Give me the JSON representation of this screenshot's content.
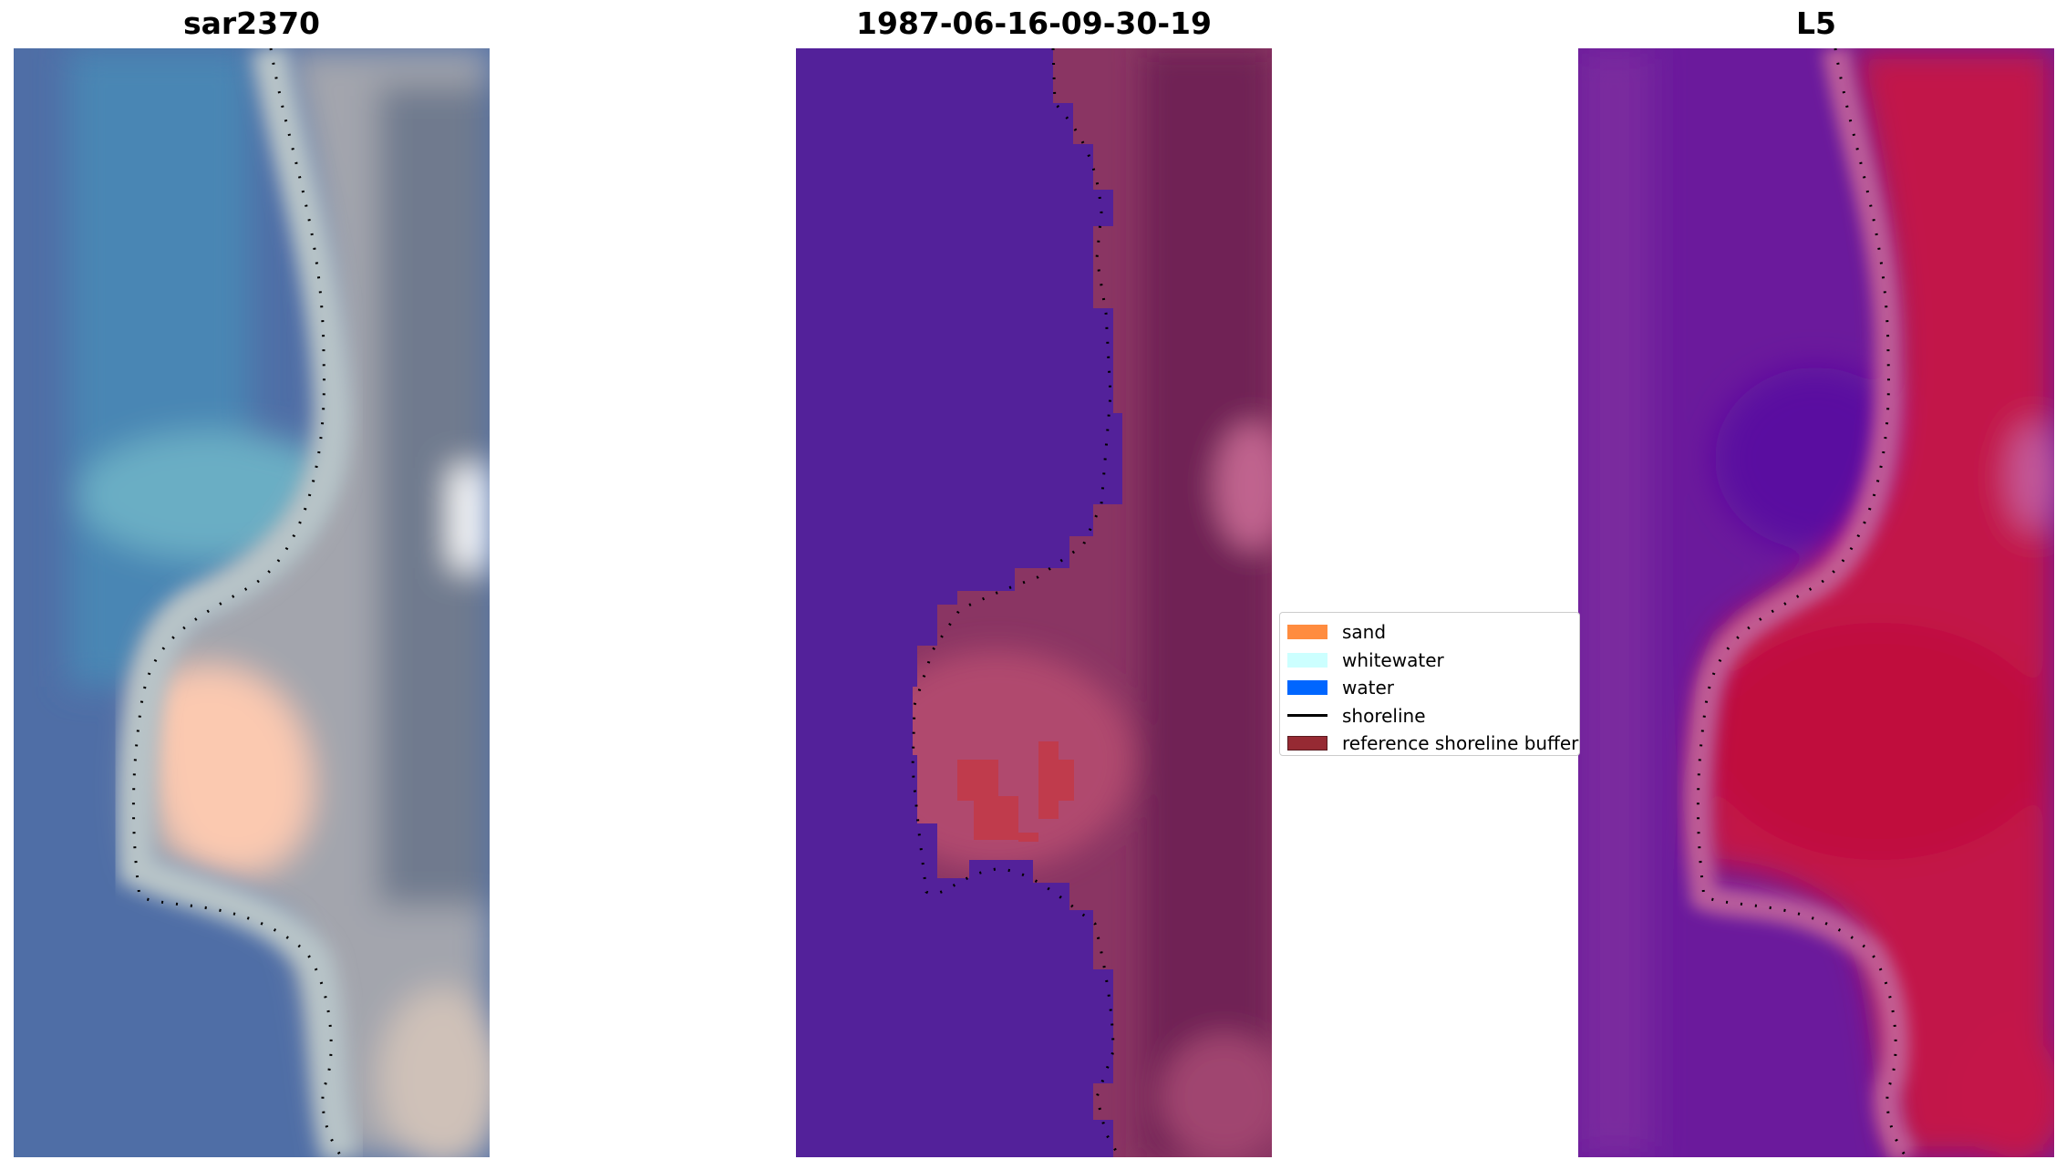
{
  "panels": [
    {
      "title": "sar2370",
      "style": "rgb"
    },
    {
      "title": "1987-06-16-09-30-19",
      "style": "class"
    },
    {
      "title": "L5",
      "style": "ndwi"
    }
  ],
  "legend": {
    "items": [
      {
        "label": "sand",
        "kind": "patch",
        "color": "#ff8c3f"
      },
      {
        "label": "whitewater",
        "kind": "patch",
        "color": "#ccffff"
      },
      {
        "label": "water",
        "kind": "patch",
        "color": "#0066ff"
      },
      {
        "label": "shoreline",
        "kind": "line",
        "color": "#000000"
      },
      {
        "label": "reference shoreline buffer",
        "kind": "patch",
        "color": "#962a33"
      }
    ]
  },
  "colors": {
    "water_class": "#53219a",
    "land_class": "#8a3563",
    "sand_overlay": "#c23a48",
    "ndwi_water": "#6a1a9c",
    "ndwi_land": "#c81340",
    "rgb_water": "#4e6fa6",
    "rgb_land": "#9a9ea8",
    "rgb_sand": "#fecbb3"
  }
}
